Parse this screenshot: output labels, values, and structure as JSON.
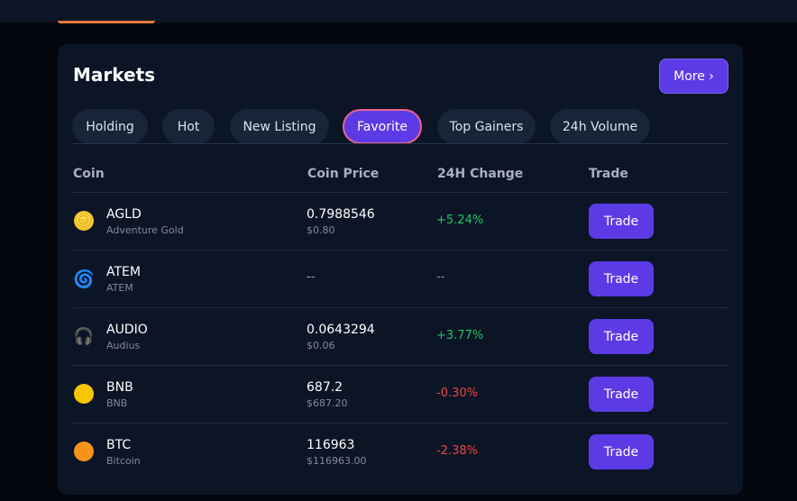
{
  "header": {
    "title": "Markets",
    "more_label": "More ›"
  },
  "tabs": [
    {
      "label": "Holding",
      "active": false
    },
    {
      "label": "Hot",
      "active": false
    },
    {
      "label": "New Listing",
      "active": false
    },
    {
      "label": "Favorite",
      "active": true
    },
    {
      "label": "Top Gainers",
      "active": false
    },
    {
      "label": "24h Volume",
      "active": false
    }
  ],
  "table": {
    "columns": [
      "Coin",
      "Coin Price",
      "24H Change",
      "Trade"
    ],
    "rows": [
      {
        "symbol": "AGLD",
        "name": "Adventure Gold",
        "price": "0.7988546",
        "usd": "$0.80",
        "change": "+5.24%",
        "change_color": "#22c55e",
        "trade_label": "Trade",
        "icon": "gold-coin-icon",
        "icon_glyph": "🪙"
      },
      {
        "symbol": "ATEM",
        "name": "ATEM",
        "price": "--",
        "usd": "",
        "change": "--",
        "change_color": "#8a94a6",
        "trade_label": "Trade",
        "icon": "cyclone-icon",
        "icon_glyph": "🌀"
      },
      {
        "symbol": "AUDIO",
        "name": "Audius",
        "price": "0.0643294",
        "usd": "$0.06",
        "change": "+3.77%",
        "change_color": "#22c55e",
        "trade_label": "Trade",
        "icon": "headphones-icon",
        "icon_glyph": "🎧"
      },
      {
        "symbol": "BNB",
        "name": "BNB",
        "price": "687.2",
        "usd": "$687.20",
        "change": "-0.30%",
        "change_color": "#ef4444",
        "trade_label": "Trade",
        "icon": "yellow-circle-icon",
        "icon_glyph": ""
      },
      {
        "symbol": "BTC",
        "name": "Bitcoin",
        "price": "116963",
        "usd": "$116963.00",
        "change": "-2.38%",
        "change_color": "#ef4444",
        "trade_label": "Trade",
        "icon": "orange-circle-icon",
        "icon_glyph": ""
      }
    ]
  },
  "colors": {
    "accent": "#5c3be6",
    "active_tab_border": "#e8648e",
    "positive": "#22c55e",
    "negative": "#ef4444"
  }
}
